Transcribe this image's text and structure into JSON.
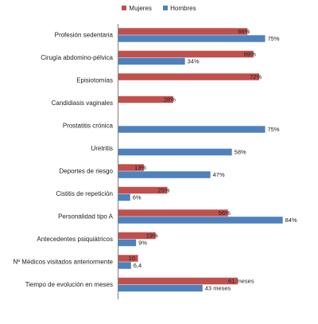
{
  "chart_data": {
    "type": "bar",
    "orientation": "horizontal",
    "legend_position": "top-center",
    "colors": {
      "mujeres": "#c0504d",
      "hombres": "#4f81bd"
    },
    "series": [
      {
        "name": "Mujeres",
        "color": "#c0504d"
      },
      {
        "name": "Hombres",
        "color": "#4f81bd"
      }
    ],
    "categories": [
      {
        "label": "Profesión sedentaria",
        "values": [
          66,
          75
        ],
        "labels": [
          "66%",
          "75%"
        ]
      },
      {
        "label": "Cirugía abdomino-pélvica",
        "values": [
          69,
          34
        ],
        "labels": [
          "69%",
          "34%"
        ]
      },
      {
        "label": "Episiotomías",
        "values": [
          72,
          null
        ],
        "labels": [
          "72%",
          null
        ]
      },
      {
        "label": "Candidiasis vaginales",
        "values": [
          28,
          null
        ],
        "labels": [
          "28%",
          null
        ]
      },
      {
        "label": "Prostatitis crónica",
        "values": [
          null,
          75
        ],
        "labels": [
          null,
          "75%"
        ]
      },
      {
        "label": "Uretritis",
        "values": [
          null,
          58
        ],
        "labels": [
          null,
          "58%"
        ]
      },
      {
        "label": "Deportes de riesgo",
        "values": [
          13,
          47
        ],
        "labels": [
          "13%",
          "47%"
        ]
      },
      {
        "label": "Cistitis de repetición",
        "values": [
          25,
          6
        ],
        "labels": [
          "25%",
          "6%"
        ]
      },
      {
        "label": "Personalidad tipo A",
        "values": [
          56,
          84
        ],
        "labels": [
          "56%",
          "84%"
        ]
      },
      {
        "label": "Antecedentes psiquiátricos",
        "values": [
          19,
          9
        ],
        "labels": [
          "19%",
          "9%"
        ]
      },
      {
        "label": "Nº Médicos visitados anteriormente",
        "values": [
          10,
          6.4
        ],
        "labels": [
          "10",
          "6,4"
        ]
      },
      {
        "label": "Tiempo de evolución en meses",
        "values": [
          61,
          43
        ],
        "labels": [
          "61 meses",
          "43 meses"
        ]
      }
    ],
    "xlim": [
      0,
      100
    ]
  }
}
